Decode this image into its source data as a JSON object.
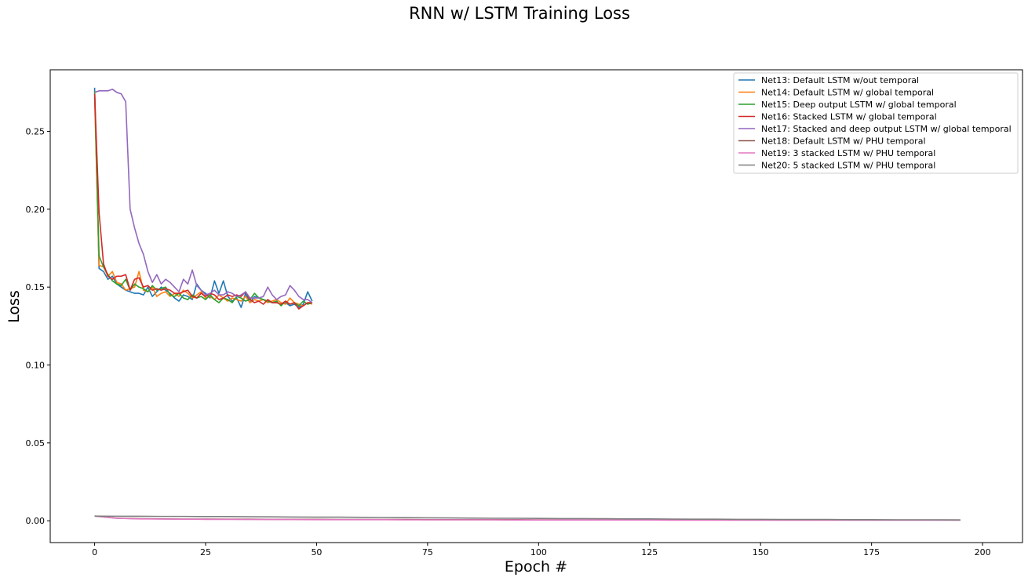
{
  "chart_data": {
    "type": "line",
    "title": "RNN w/ LSTM Training Loss",
    "xlabel": "Epoch #",
    "ylabel": "Loss",
    "xlim": [
      -10,
      209
    ],
    "ylim": [
      -0.014,
      0.2895
    ],
    "xticks": [
      0,
      25,
      50,
      75,
      100,
      125,
      150,
      175,
      200
    ],
    "xtick_labels": [
      "0",
      "25",
      "50",
      "75",
      "100",
      "125",
      "150",
      "175",
      "200"
    ],
    "yticks": [
      0.0,
      0.05,
      0.1,
      0.15,
      0.2,
      0.25
    ],
    "ytick_labels": [
      "0.00",
      "0.05",
      "0.10",
      "0.15",
      "0.20",
      "0.25"
    ],
    "grid": false,
    "legend_position": "top-right",
    "series": [
      {
        "name": "Net13: Default LSTM w/out temporal",
        "color": "#1f77b4",
        "x_start": 0,
        "values": [
          0.278,
          0.162,
          0.16,
          0.155,
          0.157,
          0.152,
          0.15,
          0.148,
          0.147,
          0.146,
          0.146,
          0.145,
          0.15,
          0.144,
          0.147,
          0.15,
          0.148,
          0.146,
          0.143,
          0.141,
          0.145,
          0.144,
          0.142,
          0.152,
          0.148,
          0.146,
          0.143,
          0.154,
          0.146,
          0.154,
          0.144,
          0.141,
          0.143,
          0.137,
          0.146,
          0.14,
          0.144,
          0.143,
          0.142,
          0.141,
          0.14,
          0.14,
          0.139,
          0.14,
          0.138,
          0.139,
          0.137,
          0.139,
          0.147,
          0.141
        ]
      },
      {
        "name": "Net14: Default LSTM w/ global temporal",
        "color": "#ff7f0e",
        "x_start": 0,
        "values": [
          0.272,
          0.164,
          0.163,
          0.157,
          0.16,
          0.153,
          0.152,
          0.148,
          0.149,
          0.15,
          0.16,
          0.148,
          0.147,
          0.15,
          0.144,
          0.146,
          0.147,
          0.144,
          0.146,
          0.144,
          0.148,
          0.146,
          0.143,
          0.145,
          0.147,
          0.143,
          0.144,
          0.142,
          0.145,
          0.143,
          0.141,
          0.143,
          0.142,
          0.141,
          0.144,
          0.14,
          0.142,
          0.141,
          0.142,
          0.14,
          0.141,
          0.142,
          0.14,
          0.139,
          0.143,
          0.14,
          0.139,
          0.138,
          0.14,
          0.139
        ]
      },
      {
        "name": "Net15: Deep output LSTM w/ global temporal",
        "color": "#2ca02c",
        "x_start": 0,
        "values": [
          0.276,
          0.17,
          0.163,
          0.158,
          0.154,
          0.152,
          0.151,
          0.155,
          0.148,
          0.152,
          0.15,
          0.149,
          0.147,
          0.151,
          0.148,
          0.149,
          0.15,
          0.145,
          0.144,
          0.146,
          0.143,
          0.142,
          0.145,
          0.143,
          0.144,
          0.142,
          0.145,
          0.142,
          0.14,
          0.143,
          0.142,
          0.14,
          0.144,
          0.143,
          0.141,
          0.142,
          0.146,
          0.143,
          0.142,
          0.141,
          0.14,
          0.141,
          0.138,
          0.141,
          0.139,
          0.14,
          0.138,
          0.141,
          0.139,
          0.14
        ]
      },
      {
        "name": "Net16: Stacked LSTM w/ global temporal",
        "color": "#d62728",
        "x_start": 0,
        "values": [
          0.274,
          0.198,
          0.165,
          0.157,
          0.155,
          0.157,
          0.157,
          0.158,
          0.148,
          0.155,
          0.156,
          0.15,
          0.151,
          0.148,
          0.149,
          0.148,
          0.149,
          0.148,
          0.146,
          0.146,
          0.147,
          0.148,
          0.144,
          0.143,
          0.146,
          0.144,
          0.146,
          0.145,
          0.142,
          0.143,
          0.145,
          0.144,
          0.145,
          0.144,
          0.147,
          0.142,
          0.14,
          0.141,
          0.139,
          0.142,
          0.14,
          0.14,
          0.139,
          0.141,
          0.139,
          0.14,
          0.136,
          0.138,
          0.14,
          0.14
        ]
      },
      {
        "name": "Net17: Stacked and deep output LSTM w/ global temporal",
        "color": "#9467bd",
        "x_start": 0,
        "values": [
          0.275,
          0.276,
          0.276,
          0.276,
          0.277,
          0.275,
          0.274,
          0.269,
          0.2,
          0.188,
          0.178,
          0.171,
          0.16,
          0.153,
          0.158,
          0.152,
          0.155,
          0.153,
          0.15,
          0.147,
          0.155,
          0.152,
          0.161,
          0.151,
          0.148,
          0.145,
          0.146,
          0.148,
          0.145,
          0.145,
          0.147,
          0.146,
          0.144,
          0.145,
          0.147,
          0.143,
          0.143,
          0.143,
          0.144,
          0.15,
          0.145,
          0.142,
          0.144,
          0.145,
          0.151,
          0.148,
          0.144,
          0.142,
          0.142,
          0.14
        ]
      },
      {
        "name": "Net18: Default LSTM w/ PHU temporal",
        "color": "#8c564b",
        "x_start": 0,
        "x_step": 5,
        "values": [
          0.003,
          0.0016,
          0.0013,
          0.0012,
          0.0011,
          0.0011,
          0.001,
          0.001,
          0.0009,
          0.0009,
          0.0009,
          0.0008,
          0.0008,
          0.0008,
          0.0008,
          0.0007,
          0.0007,
          0.0007,
          0.0007,
          0.0007,
          0.0006,
          0.0006,
          0.0006,
          0.0006,
          0.0006,
          0.0006,
          0.0006,
          0.0005,
          0.0005,
          0.0005,
          0.0005,
          0.0005,
          0.0005,
          0.0005,
          0.0005,
          0.0005,
          0.0005,
          0.0005,
          0.0005,
          0.0005
        ]
      },
      {
        "name": "Net19: 3 stacked LSTM w/ PHU temporal",
        "color": "#e377c2",
        "x_start": 0,
        "x_step": 5,
        "values": [
          0.003,
          0.0016,
          0.0012,
          0.0011,
          0.001,
          0.0009,
          0.0009,
          0.0008,
          0.0008,
          0.0008,
          0.0007,
          0.0007,
          0.0007,
          0.0007,
          0.0006,
          0.0006,
          0.0006,
          0.0006,
          0.0006,
          0.0005,
          0.0005,
          0.0005,
          0.0005,
          0.0005,
          0.0005,
          0.0005,
          0.0004,
          0.0004,
          0.0004,
          0.0004,
          0.0004,
          0.0004,
          0.0004,
          0.0004,
          0.0004,
          0.0004,
          0.0004,
          0.0004,
          0.0004,
          0.0004
        ]
      },
      {
        "name": "Net20: 5 stacked LSTM w/ PHU temporal",
        "color": "#7f7f7f",
        "x_start": 0,
        "x_step": 5,
        "values": [
          0.003,
          0.0029,
          0.0029,
          0.0028,
          0.0028,
          0.0027,
          0.0027,
          0.0026,
          0.0025,
          0.0024,
          0.0023,
          0.0023,
          0.0022,
          0.0021,
          0.002,
          0.0019,
          0.0018,
          0.0017,
          0.0016,
          0.0016,
          0.0015,
          0.0014,
          0.0014,
          0.0013,
          0.0012,
          0.0012,
          0.0011,
          0.001,
          0.001,
          0.0009,
          0.0009,
          0.0008,
          0.0008,
          0.0008,
          0.0007,
          0.0007,
          0.0006,
          0.0006,
          0.0006,
          0.0005
        ]
      }
    ]
  }
}
